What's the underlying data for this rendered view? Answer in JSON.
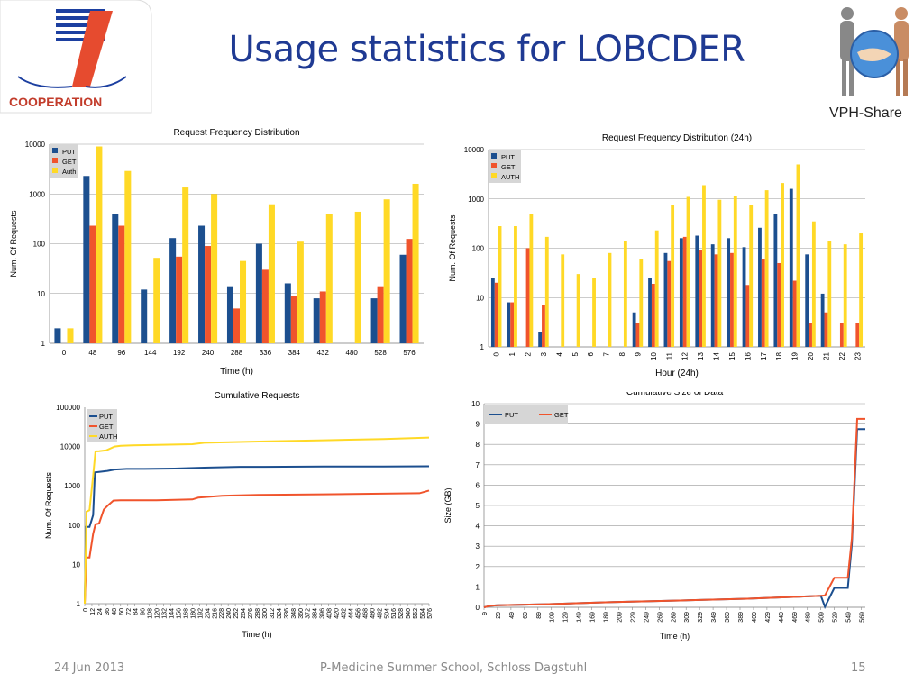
{
  "slide": {
    "title": "Usage statistics for LOBCDER",
    "footer_date": "24 Jun 2013",
    "footer_center": "P-Medicine Summer School, Schloss Dagstuhl",
    "page_number": "15",
    "logo_left_text": "COOPERATION",
    "logo_right_text": "VPH-Share",
    "colors": {
      "title": "#1f3a93",
      "put": "#1c4f8f",
      "get": "#f0542c",
      "auth": "#ffd926"
    }
  },
  "chart_data": [
    {
      "type": "bar",
      "title": "Request Frequency Distribution",
      "xlabel": "Time (h)",
      "ylabel": "Num. Of Requests",
      "yscale": "log",
      "ylim": [
        1,
        10000
      ],
      "yticks": [
        "1",
        "10",
        "100",
        "1000",
        "10000"
      ],
      "categories": [
        "0",
        "48",
        "96",
        "144",
        "192",
        "240",
        "288",
        "336",
        "384",
        "432",
        "480",
        "528",
        "576"
      ],
      "series": [
        {
          "name": "PUT",
          "values": [
            2,
            2300,
            400,
            12,
            130,
            230,
            14,
            100,
            16,
            8,
            null,
            8,
            60
          ]
        },
        {
          "name": "GET",
          "values": [
            null,
            230,
            230,
            null,
            55,
            90,
            5,
            30,
            9,
            11,
            null,
            14,
            125
          ]
        },
        {
          "name": "Auth",
          "values": [
            2,
            9000,
            2900,
            52,
            1350,
            1000,
            45,
            620,
            110,
            400,
            440,
            780,
            1600
          ]
        }
      ]
    },
    {
      "type": "bar",
      "title": "Request Frequency Distribution (24h)",
      "xlabel": "Hour (24h)",
      "ylabel": "Num. Of Requests",
      "yscale": "log",
      "ylim": [
        1,
        10000
      ],
      "yticks": [
        "1",
        "10",
        "100",
        "1000",
        "10000"
      ],
      "categories": [
        "0",
        "1",
        "2",
        "3",
        "4",
        "5",
        "6",
        "7",
        "8",
        "9",
        "10",
        "11",
        "12",
        "13",
        "14",
        "15",
        "16",
        "17",
        "18",
        "19",
        "20",
        "21",
        "22",
        "23"
      ],
      "series": [
        {
          "name": "PUT",
          "values": [
            25,
            8,
            null,
            2,
            null,
            null,
            null,
            null,
            null,
            5,
            25,
            80,
            160,
            180,
            120,
            160,
            105,
            260,
            500,
            1600,
            75,
            12,
            null,
            null
          ]
        },
        {
          "name": "GET",
          "values": [
            20,
            8,
            100,
            7,
            null,
            null,
            null,
            null,
            null,
            3,
            19,
            55,
            170,
            90,
            75,
            80,
            18,
            60,
            50,
            22,
            3,
            5,
            3,
            3
          ]
        },
        {
          "name": "AUTH",
          "values": [
            280,
            280,
            500,
            170,
            75,
            30,
            25,
            80,
            140,
            60,
            230,
            760,
            1100,
            1900,
            960,
            1150,
            750,
            1500,
            2100,
            5000,
            350,
            140,
            120,
            200
          ]
        }
      ]
    },
    {
      "type": "line",
      "title": "Cumulative Requests",
      "xlabel": "Time (h)",
      "ylabel": "Num. Of Requests",
      "yscale": "log",
      "ylim": [
        1,
        100000
      ],
      "xlim": [
        0,
        576
      ],
      "yticks": [
        "1",
        "10",
        "100",
        "1000",
        "10000",
        "100000"
      ],
      "xticks": [
        "0",
        "12",
        "24",
        "36",
        "48",
        "60",
        "72",
        "84",
        "96",
        "108",
        "120",
        "132",
        "144",
        "156",
        "168",
        "180",
        "192",
        "204",
        "216",
        "228",
        "240",
        "252",
        "264",
        "276",
        "288",
        "300",
        "312",
        "324",
        "336",
        "348",
        "360",
        "372",
        "384",
        "396",
        "408",
        "420",
        "432",
        "444",
        "456",
        "468",
        "480",
        "492",
        "504",
        "516",
        "528",
        "540",
        "552",
        "564",
        "576"
      ],
      "series": [
        {
          "name": "PUT",
          "x": [
            0,
            2,
            8,
            14,
            17,
            24,
            38,
            50,
            60,
            70,
            100,
            150,
            200,
            260,
            300,
            400,
            500,
            576
          ],
          "y": [
            1,
            90,
            90,
            180,
            2200,
            2250,
            2400,
            2600,
            2650,
            2700,
            2700,
            2750,
            2900,
            3050,
            3050,
            3100,
            3100,
            3150
          ]
        },
        {
          "name": "GET",
          "x": [
            0,
            3,
            8,
            14,
            18,
            24,
            32,
            40,
            48,
            60,
            120,
            180,
            190,
            230,
            290,
            400,
            560,
            576
          ],
          "y": [
            1,
            15,
            15,
            60,
            105,
            110,
            250,
            330,
            420,
            430,
            430,
            450,
            500,
            560,
            590,
            610,
            650,
            760
          ]
        },
        {
          "name": "AUTH",
          "x": [
            0,
            3,
            8,
            14,
            18,
            24,
            36,
            50,
            60,
            80,
            120,
            180,
            200,
            250,
            300,
            400,
            500,
            576
          ],
          "y": [
            1,
            220,
            240,
            1800,
            7500,
            7600,
            8000,
            10000,
            10500,
            10700,
            11000,
            11500,
            12500,
            13000,
            13500,
            14500,
            15500,
            17000
          ]
        }
      ]
    },
    {
      "type": "line",
      "title": "Cumulative Size of Data",
      "xlabel": "Time (h)",
      "ylabel": "Size (GB)",
      "ylim": [
        0,
        10
      ],
      "xlim": [
        9,
        575
      ],
      "yticks": [
        "0",
        "1",
        "2",
        "3",
        "4",
        "5",
        "6",
        "7",
        "8",
        "9",
        "10"
      ],
      "xticks": [
        "9",
        "29",
        "49",
        "69",
        "89",
        "109",
        "129",
        "149",
        "169",
        "189",
        "209",
        "229",
        "249",
        "269",
        "289",
        "309",
        "329",
        "349",
        "369",
        "389",
        "409",
        "429",
        "449",
        "469",
        "489",
        "509",
        "529",
        "549",
        "569"
      ],
      "series": [
        {
          "name": "PUT",
          "x": [
            9,
            20,
            29,
            100,
            200,
            300,
            400,
            509,
            515,
            529,
            540,
            549,
            555,
            563,
            566,
            575
          ],
          "y": [
            0,
            0.08,
            0.1,
            0.15,
            0.25,
            0.33,
            0.42,
            0.56,
            0.02,
            0.95,
            0.95,
            0.95,
            3.1,
            8.75,
            8.75,
            8.75
          ]
        },
        {
          "name": "GET",
          "x": [
            9,
            20,
            29,
            100,
            200,
            300,
            400,
            509,
            515,
            529,
            540,
            549,
            555,
            563,
            566,
            575
          ],
          "y": [
            0,
            0.08,
            0.1,
            0.15,
            0.25,
            0.33,
            0.42,
            0.56,
            0.58,
            1.45,
            1.45,
            1.45,
            3.4,
            9.25,
            9.25,
            9.25
          ]
        }
      ]
    }
  ]
}
